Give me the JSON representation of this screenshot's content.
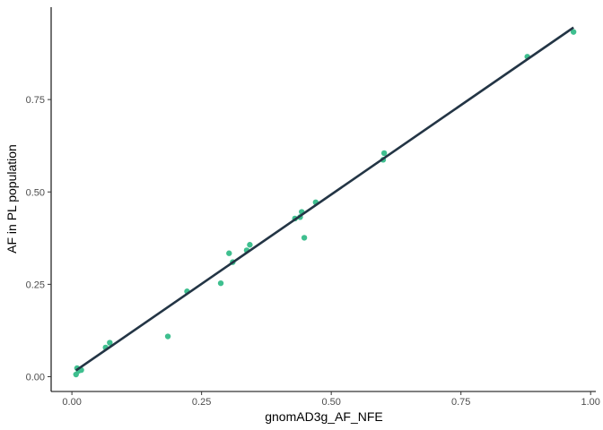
{
  "chart_data": {
    "type": "scatter",
    "title": "",
    "xlabel": "gnomAD3g_AF_NFE",
    "ylabel": "AF in PL population",
    "xlim": [
      -0.04,
      1.01
    ],
    "ylim": [
      -0.04,
      1.0
    ],
    "x_ticks": [
      0.0,
      0.25,
      0.5,
      0.75,
      1.0
    ],
    "x_tick_labels": [
      "0.00",
      "0.25",
      "0.50",
      "0.75",
      "1.00"
    ],
    "y_ticks": [
      0.0,
      0.25,
      0.5,
      0.75
    ],
    "y_tick_labels": [
      "0.00",
      "0.25",
      "0.50",
      "0.75"
    ],
    "grid": false,
    "colors": {
      "points": "#3fbf8f",
      "fit_line": "#233545",
      "axis": "#000000"
    },
    "series": [
      {
        "type": "scatter",
        "x": [
          0.008,
          0.01,
          0.013,
          0.018,
          0.065,
          0.073,
          0.185,
          0.222,
          0.287,
          0.303,
          0.31,
          0.337,
          0.343,
          0.43,
          0.44,
          0.443,
          0.448,
          0.47,
          0.6,
          0.602,
          0.878,
          0.967
        ],
        "y": [
          0.006,
          0.023,
          0.016,
          0.018,
          0.079,
          0.092,
          0.109,
          0.231,
          0.253,
          0.334,
          0.31,
          0.342,
          0.357,
          0.428,
          0.432,
          0.446,
          0.376,
          0.472,
          0.587,
          0.605,
          0.866,
          0.933
        ]
      }
    ],
    "fit_line": {
      "x": [
        0.008,
        0.967
      ],
      "y": [
        0.017,
        0.945
      ]
    }
  }
}
